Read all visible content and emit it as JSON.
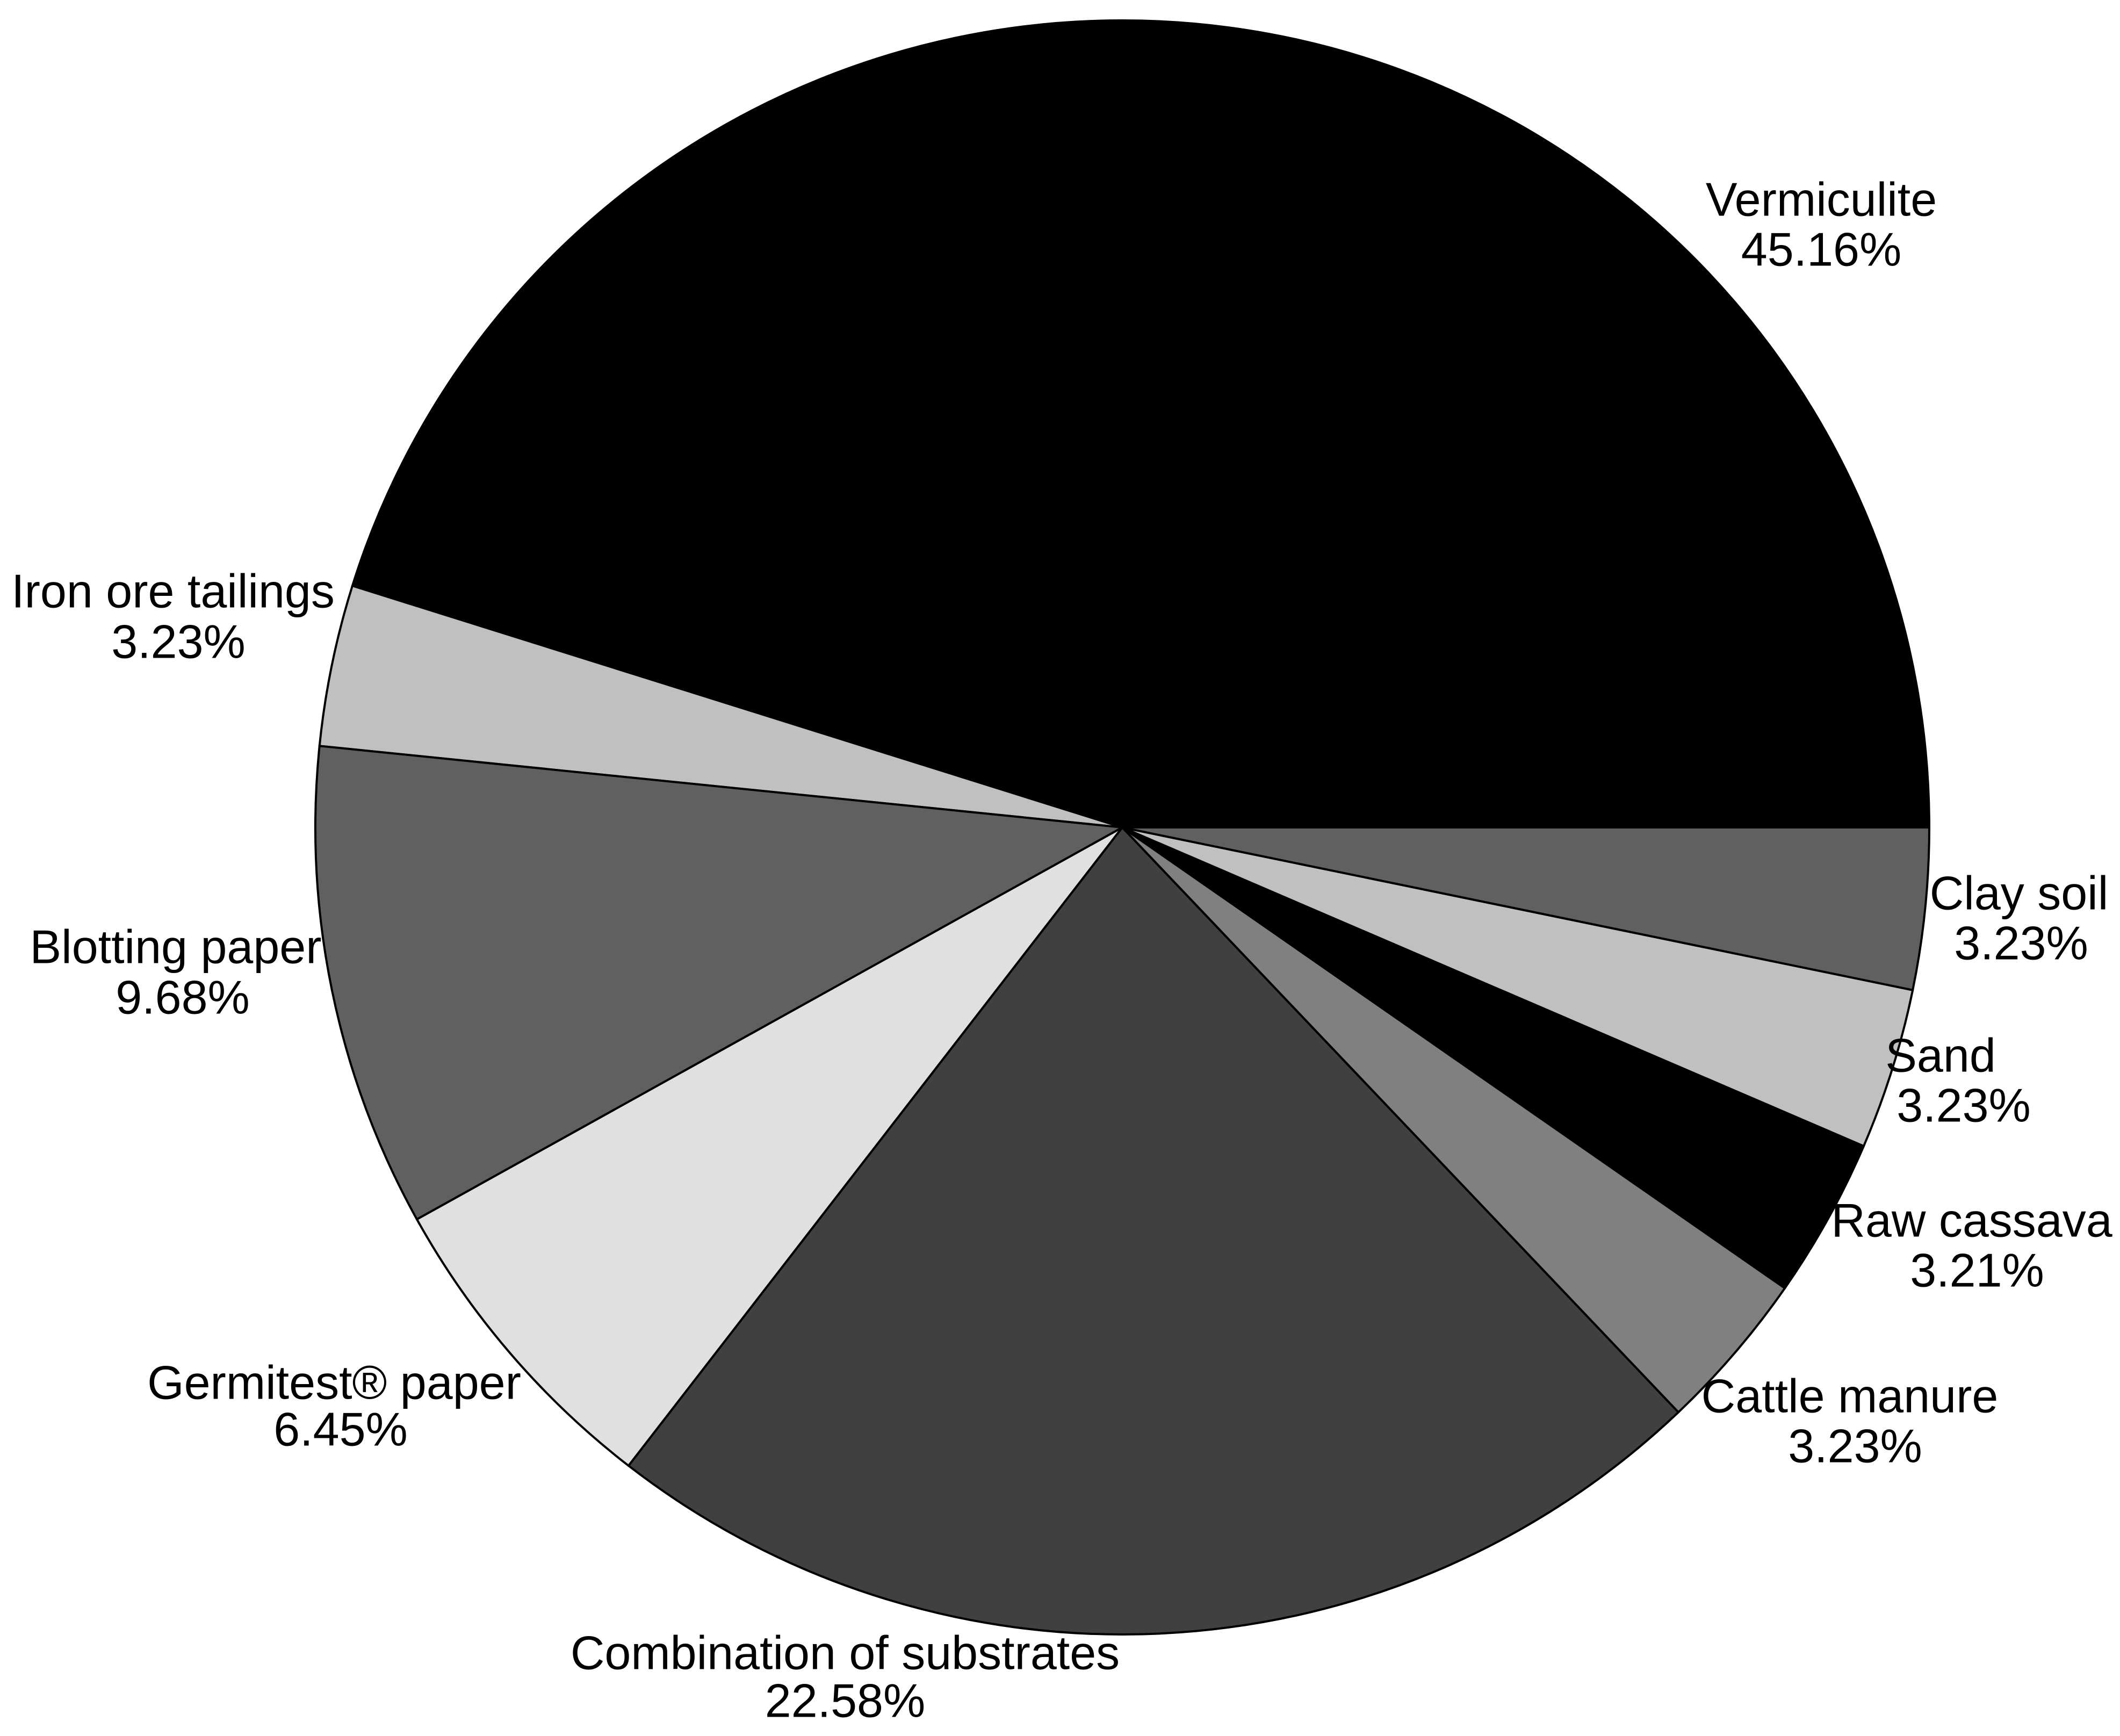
{
  "chart_data": {
    "type": "pie",
    "categories": [
      "Vermiculite",
      "Iron ore tailings",
      "Blotting paper",
      "Germitest® paper",
      "Combination of substrates",
      "Cattle manure",
      "Raw cassava",
      "Sand",
      "Clay soil"
    ],
    "values": [
      45.16,
      3.23,
      9.68,
      6.45,
      22.58,
      3.23,
      3.21,
      3.23,
      3.23
    ],
    "value_labels": [
      "45.16%",
      "3.23%",
      "9.68%",
      "6.45%",
      "22.58%",
      "3.23%",
      "3.21%",
      "3.23%",
      "3.23%"
    ],
    "colors": [
      "#000000",
      "#c0c0c0",
      "#606060",
      "#e0e0e0",
      "#404040",
      "#808080",
      "#000000",
      "#c0c0c0",
      "#606060"
    ]
  }
}
